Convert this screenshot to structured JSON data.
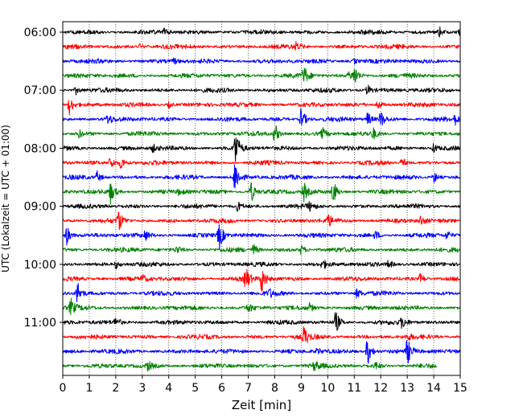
{
  "chart_data": {
    "type": "line",
    "title": "",
    "xlabel": "Zeit  [min]",
    "ylabel": "UTC (Lokalzeit = UTC + 01:00)",
    "xlim": [
      0,
      15
    ],
    "x_ticks": [
      0,
      1,
      2,
      3,
      4,
      5,
      6,
      7,
      8,
      9,
      10,
      11,
      12,
      13,
      14,
      15
    ],
    "x_tick_labels": [
      "0",
      "1",
      "2",
      "3",
      "4",
      "5",
      "6",
      "7",
      "8",
      "9",
      "10",
      "11",
      "12",
      "13",
      "14",
      "15"
    ],
    "y_tick_labels": [
      "06:00",
      "07:00",
      "08:00",
      "09:00",
      "10:00",
      "11:00"
    ],
    "y_tick_trace_index": [
      0,
      4,
      8,
      12,
      16,
      20
    ],
    "trace_interval_minutes": 15,
    "grid": "vertical dotted",
    "trace_colors": [
      "#000000",
      "#ff0000",
      "#0000ff",
      "#008000"
    ],
    "traces": [
      {
        "start": "06:00",
        "color": "#000000",
        "end_min": 15,
        "events": [
          [
            3.8,
            0.35
          ],
          [
            14.2,
            0.6
          ],
          [
            15,
            0.4
          ]
        ]
      },
      {
        "start": "06:15",
        "color": "#ff0000",
        "end_min": 15,
        "events": [
          [
            8.8,
            0.35
          ],
          [
            2.9,
            0.3
          ]
        ]
      },
      {
        "start": "06:30",
        "color": "#0000ff",
        "end_min": 15,
        "events": [
          [
            4.2,
            0.3
          ],
          [
            11.0,
            0.3
          ]
        ]
      },
      {
        "start": "06:45",
        "color": "#008000",
        "end_min": 15,
        "events": [
          [
            9.1,
            1.0
          ],
          [
            11.0,
            1.1
          ],
          [
            10.8,
            0.4
          ]
        ]
      },
      {
        "start": "07:00",
        "color": "#000000",
        "end_min": 15,
        "events": [
          [
            11.5,
            0.6
          ],
          [
            0.5,
            0.4
          ]
        ]
      },
      {
        "start": "07:15",
        "color": "#ff0000",
        "end_min": 15,
        "events": [
          [
            0.25,
            1.0
          ],
          [
            11.9,
            0.5
          ],
          [
            4.0,
            0.3
          ]
        ]
      },
      {
        "start": "07:30",
        "color": "#0000ff",
        "end_min": 15,
        "events": [
          [
            9.0,
            1.3
          ],
          [
            11.5,
            0.8
          ],
          [
            12.0,
            0.9
          ],
          [
            1.7,
            0.5
          ],
          [
            14.8,
            0.5
          ]
        ]
      },
      {
        "start": "07:45",
        "color": "#008000",
        "end_min": 15,
        "events": [
          [
            8.0,
            1.1
          ],
          [
            9.8,
            0.6
          ],
          [
            11.7,
            0.6
          ],
          [
            0.6,
            0.5
          ]
        ]
      },
      {
        "start": "08:00",
        "color": "#000000",
        "end_min": 15,
        "events": [
          [
            6.5,
            2.2
          ],
          [
            14.0,
            0.5
          ],
          [
            3.4,
            0.4
          ]
        ]
      },
      {
        "start": "08:15",
        "color": "#ff0000",
        "end_min": 15,
        "events": [
          [
            1.8,
            0.8
          ],
          [
            2.2,
            0.7
          ],
          [
            12.8,
            0.6
          ]
        ]
      },
      {
        "start": "08:30",
        "color": "#0000ff",
        "end_min": 15,
        "events": [
          [
            6.5,
            2.0
          ],
          [
            14.0,
            0.6
          ],
          [
            1.3,
            0.6
          ]
        ]
      },
      {
        "start": "08:45",
        "color": "#008000",
        "end_min": 15,
        "events": [
          [
            1.8,
            1.1
          ],
          [
            7.1,
            1.2
          ],
          [
            9.1,
            1.0
          ],
          [
            10.2,
            1.3
          ],
          [
            4.4,
            0.4
          ]
        ]
      },
      {
        "start": "09:00",
        "color": "#000000",
        "end_min": 15,
        "events": [
          [
            6.6,
            0.5
          ],
          [
            9.3,
            0.4
          ]
        ]
      },
      {
        "start": "09:15",
        "color": "#ff0000",
        "end_min": 15,
        "events": [
          [
            2.1,
            1.1
          ],
          [
            10.0,
            0.7
          ],
          [
            13.5,
            0.5
          ]
        ]
      },
      {
        "start": "09:30",
        "color": "#0000ff",
        "end_min": 15,
        "events": [
          [
            0.15,
            1.0
          ],
          [
            5.9,
            1.5
          ],
          [
            3.1,
            0.5
          ],
          [
            11.8,
            0.5
          ],
          [
            14.5,
            0.5
          ]
        ]
      },
      {
        "start": "09:45",
        "color": "#008000",
        "end_min": 15,
        "events": [
          [
            7.2,
            0.6
          ],
          [
            9.0,
            0.5
          ],
          [
            4.3,
            0.4
          ]
        ]
      },
      {
        "start": "10:00",
        "color": "#000000",
        "end_min": 15,
        "events": [
          [
            9.8,
            0.5
          ],
          [
            12.3,
            0.5
          ],
          [
            2.0,
            0.4
          ]
        ]
      },
      {
        "start": "10:15",
        "color": "#ff0000",
        "end_min": 15,
        "events": [
          [
            6.9,
            1.3
          ],
          [
            7.5,
            1.6
          ],
          [
            13.5,
            0.6
          ],
          [
            3.0,
            0.4
          ]
        ]
      },
      {
        "start": "10:30",
        "color": "#0000ff",
        "end_min": 15,
        "events": [
          [
            0.55,
            1.3
          ],
          [
            11.1,
            0.5
          ],
          [
            7.8,
            0.4
          ]
        ]
      },
      {
        "start": "10:45",
        "color": "#008000",
        "end_min": 15,
        "events": [
          [
            0.3,
            0.9
          ],
          [
            7.0,
            0.5
          ],
          [
            9.3,
            0.4
          ]
        ]
      },
      {
        "start": "11:00",
        "color": "#000000",
        "end_min": 15,
        "events": [
          [
            10.3,
            1.2
          ],
          [
            2.0,
            0.5
          ],
          [
            12.8,
            0.6
          ]
        ]
      },
      {
        "start": "11:15",
        "color": "#ff0000",
        "end_min": 15,
        "events": [
          [
            9.1,
            1.1
          ],
          [
            13.0,
            0.3
          ]
        ]
      },
      {
        "start": "11:30",
        "color": "#0000ff",
        "end_min": 15,
        "events": [
          [
            11.5,
            1.6
          ],
          [
            13.0,
            1.4
          ],
          [
            9.6,
            0.3
          ]
        ]
      },
      {
        "start": "11:45",
        "color": "#008000",
        "end_min": 14.1,
        "events": [
          [
            3.2,
            0.5
          ],
          [
            9.5,
            0.5
          ],
          [
            11.8,
            0.4
          ]
        ]
      }
    ]
  }
}
